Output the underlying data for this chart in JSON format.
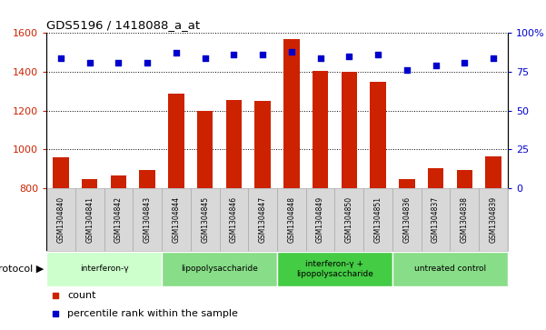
{
  "title": "GDS5196 / 1418088_a_at",
  "samples": [
    "GSM1304840",
    "GSM1304841",
    "GSM1304842",
    "GSM1304843",
    "GSM1304844",
    "GSM1304845",
    "GSM1304846",
    "GSM1304847",
    "GSM1304848",
    "GSM1304849",
    "GSM1304850",
    "GSM1304851",
    "GSM1304836",
    "GSM1304837",
    "GSM1304838",
    "GSM1304839"
  ],
  "counts": [
    960,
    848,
    865,
    895,
    1285,
    1200,
    1255,
    1252,
    1570,
    1405,
    1400,
    1348,
    848,
    905,
    893,
    962
  ],
  "percentile_ranks": [
    84,
    81,
    81,
    81,
    87,
    84,
    86,
    86,
    88,
    84,
    85,
    86,
    76,
    79,
    81,
    84
  ],
  "groups": [
    {
      "label": "interferon-γ",
      "start": 0,
      "end": 4,
      "color": "#ccffcc"
    },
    {
      "label": "lipopolysaccharide",
      "start": 4,
      "end": 8,
      "color": "#88dd88"
    },
    {
      "label": "interferon-γ +\nlipopolysaccharide",
      "start": 8,
      "end": 12,
      "color": "#44cc44"
    },
    {
      "label": "untreated control",
      "start": 12,
      "end": 16,
      "color": "#88dd88"
    }
  ],
  "ylim_left": [
    800,
    1600
  ],
  "ylim_right": [
    0,
    100
  ],
  "yticks_left": [
    800,
    1000,
    1200,
    1400,
    1600
  ],
  "yticks_right": [
    0,
    25,
    50,
    75,
    100
  ],
  "ytick_labels_right": [
    "0",
    "25",
    "50",
    "75",
    "100%"
  ],
  "bar_color": "#cc2200",
  "dot_color": "#0000cc",
  "dot_size": 25,
  "bar_width": 0.55,
  "background_color": "#ffffff",
  "protocol_label": "protocol",
  "legend_count_label": "count",
  "legend_percentile_label": "percentile rank within the sample",
  "tick_color_left": "#cc2200",
  "tick_color_right": "#0000cc",
  "gray_cell": "#d8d8d8",
  "cell_border": "#aaaaaa"
}
